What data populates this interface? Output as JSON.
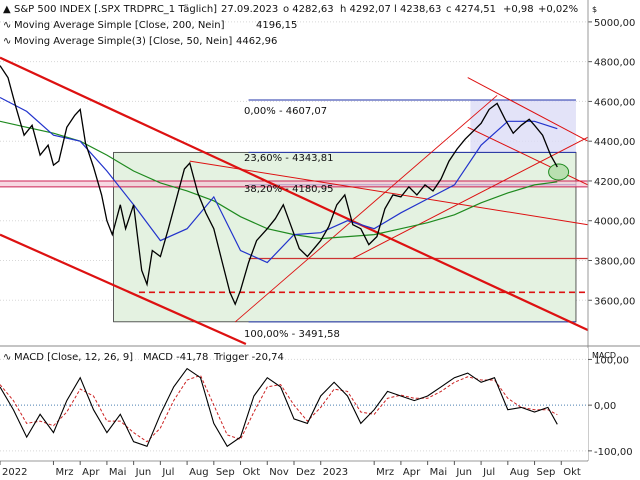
{
  "header": {
    "title": "S&P 500 INDEX [.SPX TRDPRC_1 Täglich]",
    "date": "27.09.2023",
    "open": "o 4282,63",
    "high": "h 4292,07",
    "low": "l 4238,63",
    "close": "c 4274,51",
    "change": "+0,98",
    "change_pct": "+0,02%",
    "currency": "$",
    "ma200_label": "Moving Average Simple [Close, 200, Nein]",
    "ma200_value": "4196,15",
    "ma50_label": "Moving Average Simple(3) [Close, 50, Nein]",
    "ma50_value": "4462,96"
  },
  "macd_header": {
    "label": "MACD [Close, 12, 26, 9]",
    "macd_value": "MACD -41,78",
    "trigger_value": "Trigger -20,74",
    "axis_title": "MACD"
  },
  "fib": {
    "f0": "0,00% - 4607,07",
    "f236": "23,60% - 4343,81",
    "f382": "38,20% - 4180,95",
    "f100": "100,00% - 3491,58"
  },
  "colors": {
    "ma200": "#1f8a1f",
    "ma50": "#2233cc",
    "price": "#000000",
    "channel": "#dd1111",
    "fib_box": "#e4f2e1",
    "fib_line": "#2233aa",
    "macd_line": "#000000",
    "trigger_line": "#cc2222",
    "positive": "#22aa22",
    "negative": "#cc2222"
  },
  "chart_data": [
    {
      "type": "line",
      "name": "price",
      "series_names": [
        "S&P 500 INDEX",
        "Moving Average Simple [Close, 200, Nein]",
        "Moving Average Simple(3) [Close, 50, Nein]"
      ],
      "yticks": [
        3600,
        3800,
        4000,
        4200,
        4400,
        4600,
        4800,
        5000
      ],
      "ytick_labels": [
        "3600,00",
        "3800,00",
        "4000,00",
        "4200,00",
        "4400,00",
        "4600,00",
        "4800,00",
        "5000,00"
      ],
      "ylim": [
        3380,
        5090
      ],
      "xticks": [
        "2022",
        "Mrz",
        "Apr",
        "Mai",
        "Jun",
        "Jul",
        "Aug",
        "Sep",
        "Okt",
        "Nov",
        "Dez",
        "2023",
        "Mrz",
        "Apr",
        "Mai",
        "Jun",
        "Jul",
        "Aug",
        "Sep",
        "Okt"
      ],
      "xtick_months": [
        0,
        2,
        3,
        4,
        5,
        6,
        7,
        8,
        9,
        10,
        11,
        12,
        14,
        15,
        16,
        17,
        18,
        19,
        20,
        21
      ],
      "xlim_months": [
        0,
        22.0
      ],
      "close": [
        [
          0,
          4780
        ],
        [
          0.3,
          4720
        ],
        [
          0.6,
          4570
        ],
        [
          0.9,
          4430
        ],
        [
          1.2,
          4480
        ],
        [
          1.5,
          4330
        ],
        [
          1.8,
          4380
        ],
        [
          2.0,
          4280
        ],
        [
          2.2,
          4300
        ],
        [
          2.5,
          4470
        ],
        [
          2.8,
          4530
        ],
        [
          3.0,
          4560
        ],
        [
          3.2,
          4390
        ],
        [
          3.5,
          4270
        ],
        [
          3.8,
          4130
        ],
        [
          4.0,
          4000
        ],
        [
          4.2,
          3930
        ],
        [
          4.5,
          4080
        ],
        [
          4.7,
          3960
        ],
        [
          5.0,
          4080
        ],
        [
          5.3,
          3750
        ],
        [
          5.5,
          3680
        ],
        [
          5.7,
          3850
        ],
        [
          6.0,
          3820
        ],
        [
          6.3,
          3960
        ],
        [
          6.6,
          4110
        ],
        [
          6.9,
          4260
        ],
        [
          7.1,
          4290
        ],
        [
          7.4,
          4140
        ],
        [
          7.7,
          4040
        ],
        [
          8.0,
          3960
        ],
        [
          8.3,
          3800
        ],
        [
          8.6,
          3640
        ],
        [
          8.8,
          3580
        ],
        [
          9.0,
          3650
        ],
        [
          9.3,
          3790
        ],
        [
          9.6,
          3900
        ],
        [
          10.0,
          3960
        ],
        [
          10.3,
          4010
        ],
        [
          10.6,
          4080
        ],
        [
          10.9,
          3970
        ],
        [
          11.2,
          3860
        ],
        [
          11.5,
          3820
        ],
        [
          12.0,
          3900
        ],
        [
          12.3,
          3970
        ],
        [
          12.6,
          4080
        ],
        [
          12.9,
          4130
        ],
        [
          13.2,
          3980
        ],
        [
          13.5,
          3960
        ],
        [
          13.8,
          3880
        ],
        [
          14.1,
          3920
        ],
        [
          14.4,
          4060
        ],
        [
          14.7,
          4130
        ],
        [
          15.0,
          4120
        ],
        [
          15.3,
          4170
        ],
        [
          15.6,
          4130
        ],
        [
          15.9,
          4180
        ],
        [
          16.2,
          4150
        ],
        [
          16.5,
          4210
        ],
        [
          16.8,
          4300
        ],
        [
          17.1,
          4360
        ],
        [
          17.4,
          4410
        ],
        [
          17.7,
          4450
        ],
        [
          18.0,
          4490
        ],
        [
          18.3,
          4560
        ],
        [
          18.6,
          4590
        ],
        [
          18.9,
          4510
        ],
        [
          19.2,
          4440
        ],
        [
          19.5,
          4480
        ],
        [
          19.8,
          4510
        ],
        [
          20.0,
          4480
        ],
        [
          20.3,
          4430
        ],
        [
          20.6,
          4330
        ],
        [
          20.85,
          4270
        ]
      ],
      "ma200": [
        [
          0,
          4500
        ],
        [
          1,
          4470
        ],
        [
          2,
          4440
        ],
        [
          3,
          4400
        ],
        [
          4,
          4330
        ],
        [
          5,
          4250
        ],
        [
          6,
          4190
        ],
        [
          7,
          4150
        ],
        [
          8,
          4100
        ],
        [
          9,
          4020
        ],
        [
          10,
          3960
        ],
        [
          11,
          3930
        ],
        [
          12,
          3910
        ],
        [
          13,
          3920
        ],
        [
          14,
          3930
        ],
        [
          15,
          3960
        ],
        [
          16,
          3990
        ],
        [
          17,
          4030
        ],
        [
          18,
          4090
        ],
        [
          19,
          4140
        ],
        [
          20,
          4180
        ],
        [
          20.85,
          4196
        ]
      ],
      "ma50": [
        [
          0,
          4620
        ],
        [
          1,
          4550
        ],
        [
          2,
          4430
        ],
        [
          3,
          4400
        ],
        [
          4,
          4250
        ],
        [
          5,
          4080
        ],
        [
          6,
          3900
        ],
        [
          7,
          3960
        ],
        [
          8,
          4120
        ],
        [
          9,
          3850
        ],
        [
          10,
          3790
        ],
        [
          11,
          3930
        ],
        [
          12,
          3940
        ],
        [
          13,
          4000
        ],
        [
          14,
          3960
        ],
        [
          15,
          4040
        ],
        [
          16,
          4110
        ],
        [
          17,
          4180
        ],
        [
          18,
          4380
        ],
        [
          19,
          4500
        ],
        [
          20,
          4500
        ],
        [
          20.85,
          4463
        ]
      ],
      "annotations": {
        "fib_levels": [
          4607.07,
          4343.81,
          4180.95,
          3491.58
        ],
        "support_band": [
          4170,
          4200
        ],
        "support_line_3800": 3810,
        "dashed_support": 3640
      }
    },
    {
      "type": "line",
      "name": "macd",
      "series_names": [
        "MACD",
        "Trigger"
      ],
      "yticks": [
        100,
        0,
        -100
      ],
      "ytick_labels": [
        "100,00",
        "0,00",
        "-100,00"
      ],
      "ylim": [
        -120,
        125
      ],
      "macd": [
        [
          0,
          40
        ],
        [
          0.5,
          -10
        ],
        [
          1,
          -70
        ],
        [
          1.5,
          -20
        ],
        [
          2,
          -60
        ],
        [
          2.5,
          10
        ],
        [
          3,
          60
        ],
        [
          3.5,
          -10
        ],
        [
          4,
          -60
        ],
        [
          4.5,
          -20
        ],
        [
          5,
          -80
        ],
        [
          5.5,
          -90
        ],
        [
          6,
          -20
        ],
        [
          6.5,
          40
        ],
        [
          7,
          80
        ],
        [
          7.5,
          60
        ],
        [
          8,
          -40
        ],
        [
          8.5,
          -90
        ],
        [
          9,
          -70
        ],
        [
          9.5,
          20
        ],
        [
          10,
          60
        ],
        [
          10.5,
          40
        ],
        [
          11,
          -30
        ],
        [
          11.5,
          -40
        ],
        [
          12,
          20
        ],
        [
          12.5,
          50
        ],
        [
          13,
          20
        ],
        [
          13.5,
          -40
        ],
        [
          14,
          -10
        ],
        [
          14.5,
          30
        ],
        [
          15,
          20
        ],
        [
          15.5,
          10
        ],
        [
          16,
          20
        ],
        [
          16.5,
          40
        ],
        [
          17,
          60
        ],
        [
          17.5,
          70
        ],
        [
          18,
          50
        ],
        [
          18.5,
          60
        ],
        [
          19,
          -10
        ],
        [
          19.5,
          -5
        ],
        [
          20,
          -15
        ],
        [
          20.5,
          -5
        ],
        [
          20.85,
          -42
        ]
      ],
      "trigger": [
        [
          0,
          45
        ],
        [
          0.5,
          10
        ],
        [
          1,
          -40
        ],
        [
          1.5,
          -35
        ],
        [
          2,
          -45
        ],
        [
          2.5,
          -15
        ],
        [
          3,
          35
        ],
        [
          3.5,
          20
        ],
        [
          4,
          -35
        ],
        [
          4.5,
          -35
        ],
        [
          5,
          -60
        ],
        [
          5.5,
          -80
        ],
        [
          6,
          -50
        ],
        [
          6.5,
          10
        ],
        [
          7,
          55
        ],
        [
          7.5,
          65
        ],
        [
          8,
          0
        ],
        [
          8.5,
          -65
        ],
        [
          9,
          -75
        ],
        [
          9.5,
          -15
        ],
        [
          10,
          40
        ],
        [
          10.5,
          45
        ],
        [
          11,
          0
        ],
        [
          11.5,
          -35
        ],
        [
          12,
          -5
        ],
        [
          12.5,
          35
        ],
        [
          13,
          30
        ],
        [
          13.5,
          -15
        ],
        [
          14,
          -20
        ],
        [
          14.5,
          15
        ],
        [
          15,
          22
        ],
        [
          15.5,
          15
        ],
        [
          16,
          15
        ],
        [
          16.5,
          30
        ],
        [
          17,
          50
        ],
        [
          17.5,
          62
        ],
        [
          18,
          55
        ],
        [
          18.5,
          55
        ],
        [
          19,
          15
        ],
        [
          19.5,
          -5
        ],
        [
          20,
          -10
        ],
        [
          20.5,
          -10
        ],
        [
          20.85,
          -21
        ]
      ]
    }
  ]
}
